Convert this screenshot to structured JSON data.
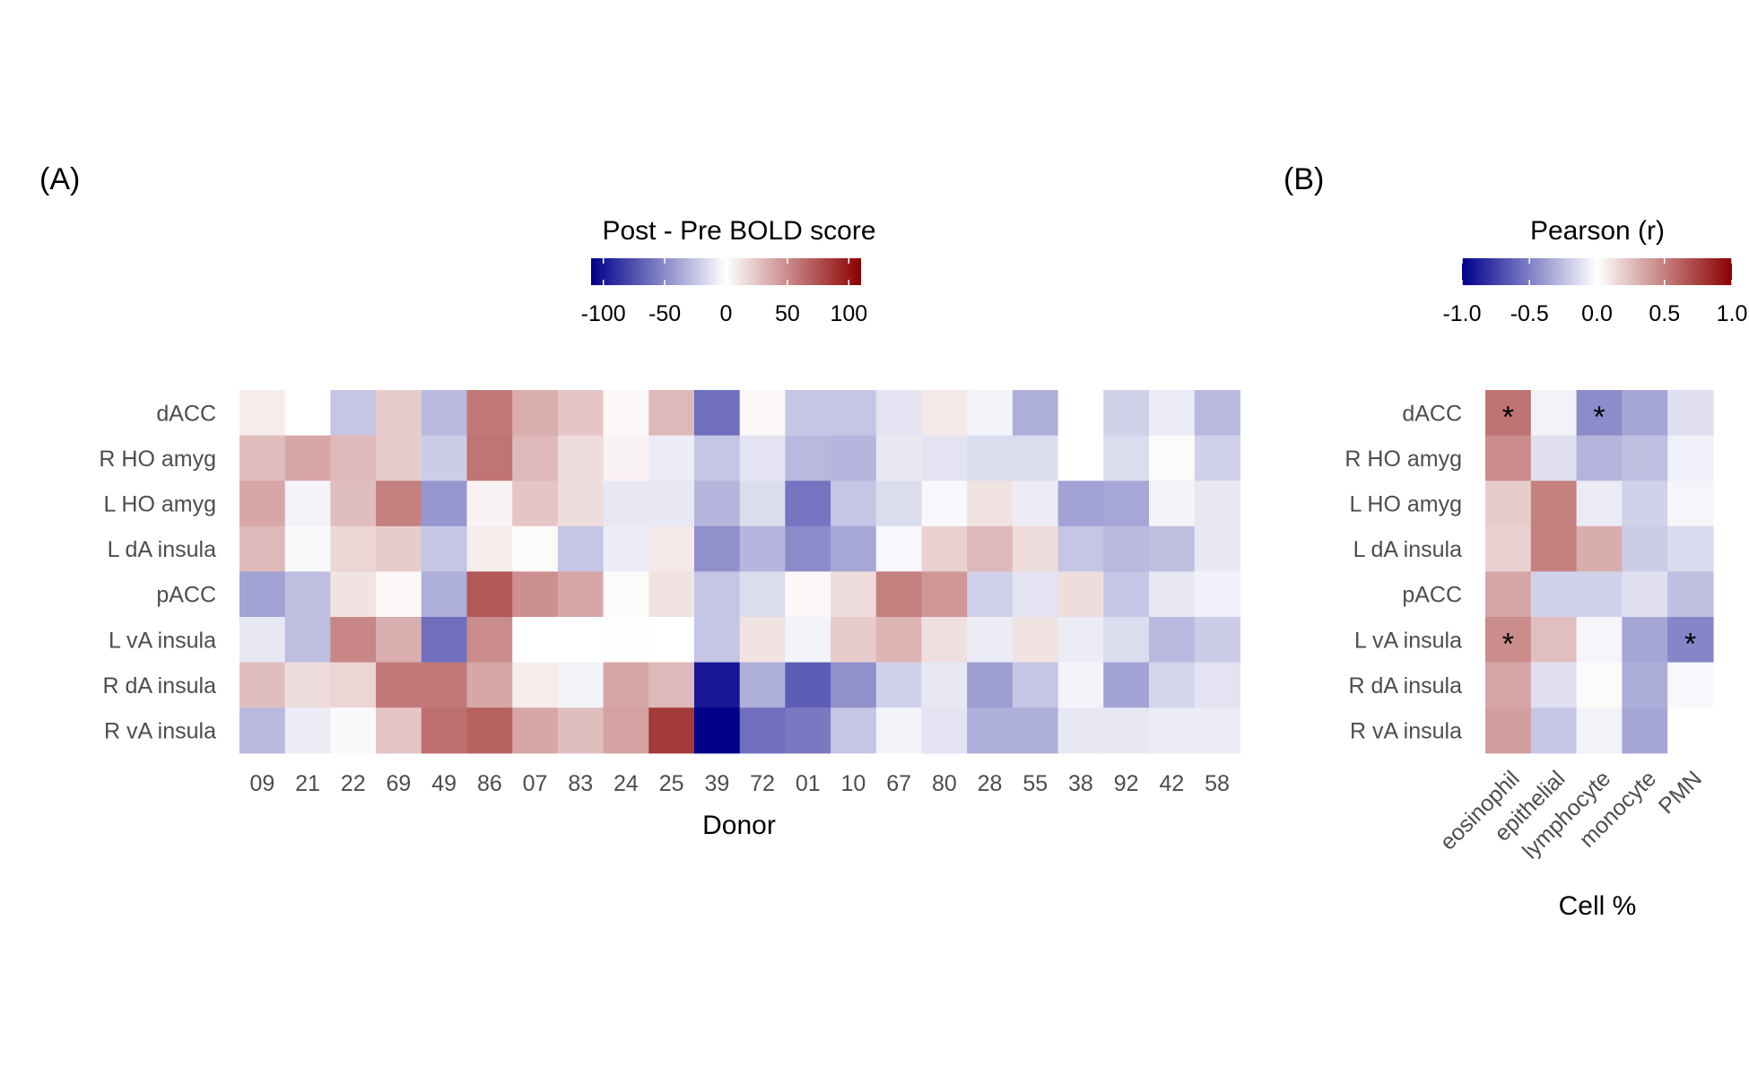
{
  "panels": {
    "a_label": "(A)",
    "b_label": "(B)"
  },
  "colors": {
    "low": "#00008B",
    "mid": "#FFFFFF",
    "high": "#8B0000",
    "missing": "#FFFFFF",
    "text": "#4d4d4d",
    "title": "#000000"
  },
  "chart_data": [
    {
      "type": "heatmap",
      "panel": "A",
      "title": "",
      "xlabel": "Donor",
      "ylabel": "",
      "legend_title": "Post - Pre BOLD score",
      "legend_ticks": [
        "-100",
        "-50",
        "0",
        "50",
        "100"
      ],
      "legend_range": [
        -110,
        110
      ],
      "legend_placement": "top",
      "grid": false,
      "x": [
        "09",
        "21",
        "22",
        "69",
        "49",
        "86",
        "07",
        "83",
        "24",
        "25",
        "39",
        "72",
        "01",
        "10",
        "67",
        "80",
        "28",
        "55",
        "38",
        "92",
        "42",
        "58"
      ],
      "y": [
        "dACC",
        "R HO amyg",
        "L HO amyg",
        "L dA insula",
        "pACC",
        "L vA insula",
        "R dA insula",
        "R vA insula"
      ],
      "values": [
        [
          8,
          0,
          -25,
          22,
          -30,
          58,
          35,
          25,
          3,
          30,
          -62,
          3,
          -25,
          -25,
          -12,
          10,
          -5,
          -35,
          0,
          -20,
          -8,
          -30
        ],
        [
          28,
          38,
          30,
          22,
          -22,
          60,
          30,
          15,
          5,
          -8,
          -25,
          -12,
          -30,
          -32,
          -10,
          -12,
          -15,
          -15,
          0,
          -15,
          2,
          -20
        ],
        [
          38,
          -5,
          28,
          55,
          -45,
          5,
          25,
          15,
          -10,
          -10,
          -32,
          -15,
          -60,
          -25,
          -15,
          -3,
          12,
          -8,
          -40,
          -38,
          -5,
          -10
        ],
        [
          30,
          -2,
          18,
          22,
          -25,
          8,
          2,
          -25,
          -8,
          10,
          -48,
          -32,
          -50,
          -38,
          -3,
          20,
          30,
          15,
          -25,
          -30,
          -28,
          -10
        ],
        [
          -40,
          -28,
          12,
          3,
          -35,
          72,
          48,
          38,
          2,
          12,
          -25,
          -15,
          3,
          15,
          55,
          45,
          -20,
          -12,
          15,
          -25,
          -10,
          -6
        ],
        [
          -10,
          -28,
          52,
          35,
          -62,
          50,
          0,
          0,
          1,
          0,
          -25,
          12,
          -5,
          22,
          32,
          14,
          -8,
          12,
          -8,
          -15,
          -30,
          -22
        ],
        [
          28,
          15,
          18,
          58,
          58,
          38,
          8,
          -5,
          38,
          30,
          -100,
          -35,
          -70,
          -48,
          -20,
          -10,
          -42,
          -25,
          -5,
          -40,
          -18,
          -12
        ],
        [
          -30,
          -8,
          -2,
          25,
          62,
          68,
          38,
          28,
          40,
          85,
          -110,
          -62,
          -58,
          -25,
          -5,
          -12,
          -35,
          -35,
          -10,
          -10,
          -8,
          -8
        ]
      ]
    },
    {
      "type": "heatmap",
      "panel": "B",
      "title": "",
      "xlabel": "Cell %",
      "ylabel": "",
      "legend_title": "Pearson (r)",
      "legend_ticks": [
        "-1.0",
        "-0.5",
        "0.0",
        "0.5",
        "1.0"
      ],
      "legend_range": [
        -1,
        1
      ],
      "legend_placement": "top",
      "grid": false,
      "x": [
        "eosinophil",
        "epithelial",
        "lymphocyte",
        "monocyte",
        "PMN"
      ],
      "y": [
        "dACC",
        "R HO amyg",
        "L HO amyg",
        "L dA insula",
        "pACC",
        "L vA insula",
        "R dA insula",
        "R vA insula"
      ],
      "values": [
        [
          0.55,
          -0.05,
          -0.45,
          -0.35,
          -0.12
        ],
        [
          0.45,
          -0.12,
          -0.3,
          -0.25,
          -0.06
        ],
        [
          0.2,
          0.5,
          -0.08,
          -0.18,
          -0.04
        ],
        [
          0.18,
          0.5,
          0.32,
          -0.2,
          -0.14
        ],
        [
          0.35,
          -0.18,
          -0.18,
          -0.12,
          -0.25
        ],
        [
          0.45,
          0.25,
          -0.04,
          -0.35,
          -0.48
        ],
        [
          0.35,
          -0.12,
          0.02,
          -0.32,
          -0.03
        ],
        [
          0.38,
          -0.22,
          -0.05,
          -0.35,
          null
        ]
      ],
      "annotations": [
        {
          "row": "dACC",
          "col": "eosinophil",
          "text": "*"
        },
        {
          "row": "dACC",
          "col": "lymphocyte",
          "text": "*"
        },
        {
          "row": "L vA insula",
          "col": "eosinophil",
          "text": "*"
        },
        {
          "row": "L vA insula",
          "col": "PMN",
          "text": "*"
        }
      ]
    }
  ]
}
